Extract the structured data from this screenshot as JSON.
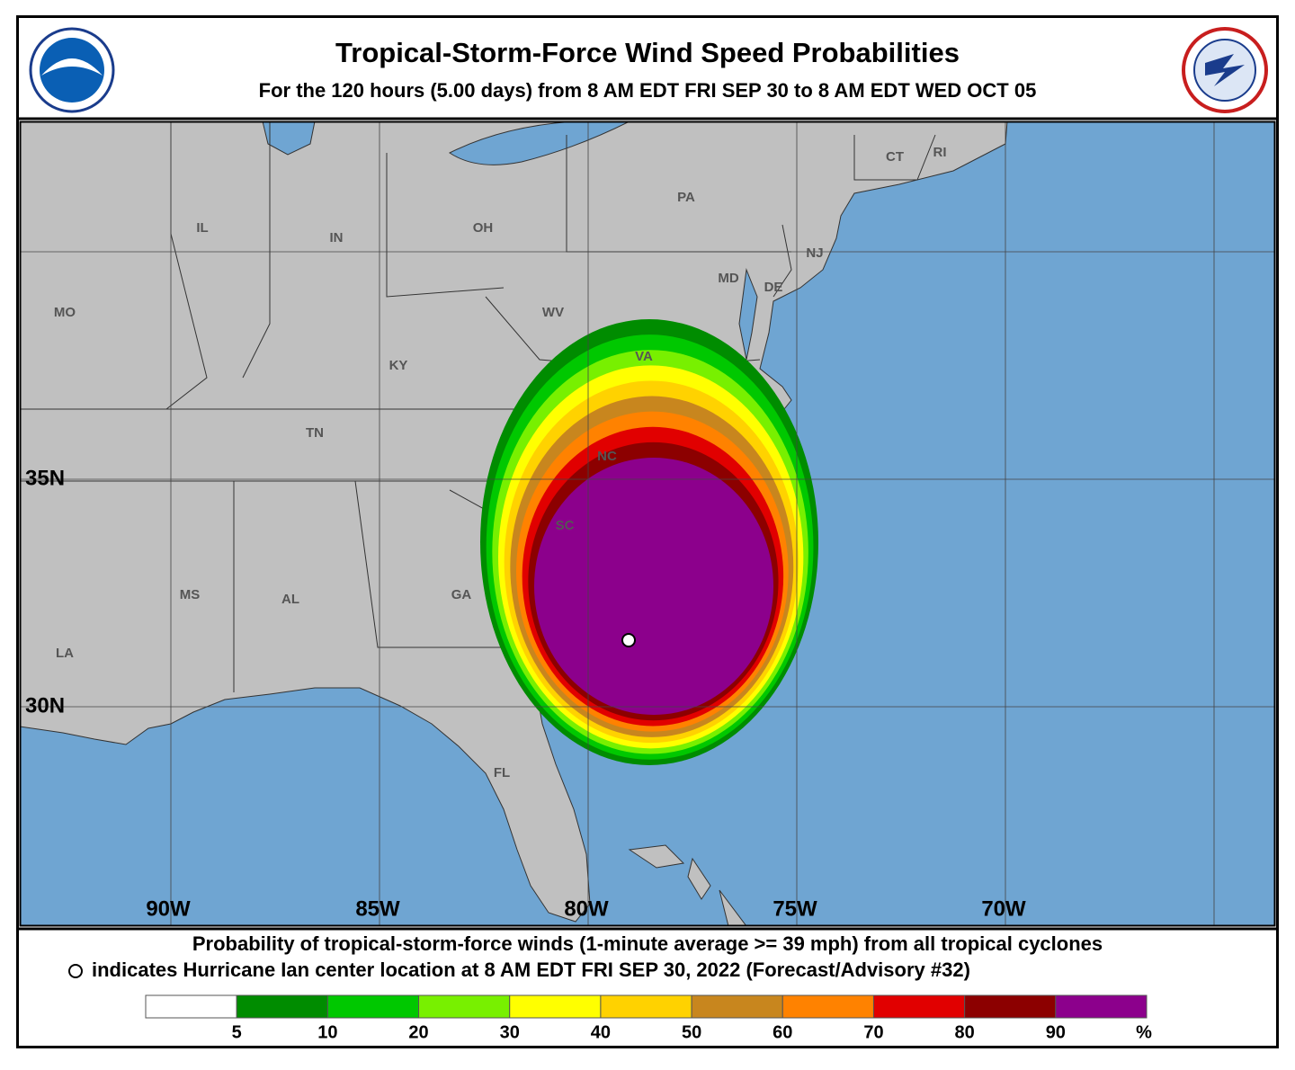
{
  "header": {
    "title": "Tropical-Storm-Force Wind Speed Probabilities",
    "subtitle": "For the 120 hours (5.00 days) from 8 AM EDT FRI SEP 30 to 8 AM EDT WED OCT 05"
  },
  "map": {
    "state_labels": [
      "IL",
      "IN",
      "OH",
      "PA",
      "CT",
      "RI",
      "NJ",
      "MD",
      "DE",
      "MO",
      "WV",
      "VA",
      "KY",
      "TN",
      "NC",
      "SC",
      "GA",
      "AL",
      "MS",
      "LA",
      "FL"
    ],
    "lat_labels": [
      "35N",
      "30N"
    ],
    "lon_labels": [
      "90W",
      "85W",
      "80W",
      "75W",
      "70W"
    ]
  },
  "footer": {
    "line1": "Probability of tropical-storm-force winds (1-minute average >= 39 mph) from all tropical cyclones",
    "line2": "indicates Hurricane Ian center location at 8 AM EDT FRI SEP 30, 2022 (Forecast/Advisory #32)"
  },
  "legend": {
    "colors": [
      "#ffffff",
      "#008c00",
      "#00c800",
      "#78f000",
      "#ffff00",
      "#ffd200",
      "#c8861e",
      "#ff8200",
      "#e10000",
      "#8c0000",
      "#8c008c"
    ],
    "ticks": [
      5,
      10,
      20,
      30,
      40,
      50,
      60,
      70,
      80,
      90
    ],
    "unit": "%"
  }
}
